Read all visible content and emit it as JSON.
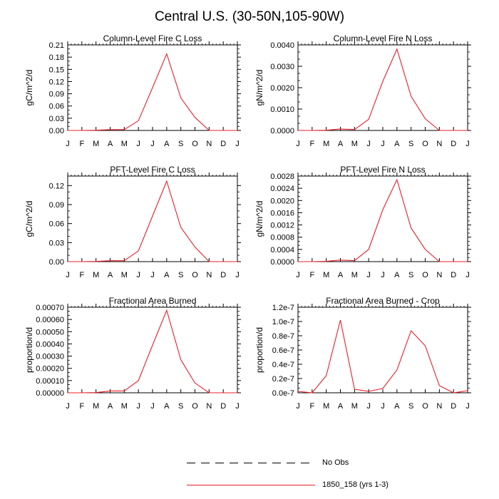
{
  "figure": {
    "title": "Central U.S. (30-50N,105-90W)"
  },
  "months": [
    "J",
    "F",
    "M",
    "A",
    "M",
    "J",
    "J",
    "A",
    "S",
    "O",
    "N",
    "D",
    "J"
  ],
  "colors": {
    "model": "#e8202a",
    "obs": "#000000"
  },
  "legend": [
    {
      "label": "No Obs",
      "style": "dashed",
      "color": "#000000"
    },
    {
      "label": "1850_158 (yrs 1-3)",
      "style": "solid",
      "color": "#e8202a"
    }
  ],
  "chart_data": [
    {
      "type": "line",
      "title": "Column-Level Fire C Loss",
      "ylabel": "gC/m^2/d",
      "ylim": [
        0,
        0.21
      ],
      "yticks": [
        "0.00",
        "0.03",
        "0.06",
        "0.09",
        "0.12",
        "0.15",
        "0.18",
        "0.21"
      ],
      "x": [
        "J",
        "F",
        "M",
        "A",
        "M",
        "J",
        "J",
        "A",
        "S",
        "O",
        "N",
        "D",
        "J"
      ],
      "series": [
        {
          "values": [
            0.0,
            0.0,
            0.0005,
            0.002,
            0.002,
            0.024,
            0.105,
            0.188,
            0.08,
            0.032,
            0.0,
            0.0,
            0.0
          ]
        }
      ]
    },
    {
      "type": "line",
      "title": "Column-Level Fire N Loss",
      "ylabel": "gN/m^2/d",
      "ylim": [
        0,
        0.004
      ],
      "yticks": [
        "0.0000",
        "0.0010",
        "0.0020",
        "0.0030",
        "0.0040"
      ],
      "x": [
        "J",
        "F",
        "M",
        "A",
        "M",
        "J",
        "J",
        "A",
        "S",
        "O",
        "N",
        "D",
        "J"
      ],
      "series": [
        {
          "values": [
            0.0,
            0.0,
            1e-05,
            7e-05,
            4e-05,
            0.00052,
            0.0023,
            0.0038,
            0.0016,
            0.00055,
            0.0,
            0.0,
            0.0
          ]
        }
      ]
    },
    {
      "type": "line",
      "title": "PFT-Level Fire C Loss",
      "ylabel": "gC/m^2/d",
      "ylim": [
        0,
        0.135
      ],
      "yticks": [
        "0.00",
        "0.03",
        "0.06",
        "0.09",
        "0.12"
      ],
      "x": [
        "J",
        "F",
        "M",
        "A",
        "M",
        "J",
        "J",
        "A",
        "S",
        "O",
        "N",
        "D",
        "J"
      ],
      "series": [
        {
          "values": [
            0.0,
            0.0,
            0.0003,
            0.0015,
            0.0015,
            0.017,
            0.072,
            0.127,
            0.054,
            0.023,
            0.0,
            0.0,
            0.0
          ]
        }
      ]
    },
    {
      "type": "line",
      "title": "PFT-Level Fire N Loss",
      "ylabel": "gN/m^2/d",
      "ylim": [
        0,
        0.0028
      ],
      "yticks": [
        "0.0000",
        "0.0004",
        "0.0008",
        "0.0012",
        "0.0016",
        "0.0020",
        "0.0024",
        "0.0028"
      ],
      "x": [
        "J",
        "F",
        "M",
        "A",
        "M",
        "J",
        "J",
        "A",
        "S",
        "O",
        "N",
        "D",
        "J"
      ],
      "series": [
        {
          "values": [
            0.0,
            0.0,
            1e-05,
            5e-05,
            3e-05,
            0.0004,
            0.0017,
            0.00268,
            0.0011,
            0.0004,
            0.0,
            0.0,
            0.0
          ]
        }
      ]
    },
    {
      "type": "line",
      "title": "Fractional Area Burned",
      "ylabel": "proportion/d",
      "ylim": [
        0,
        0.0007
      ],
      "yticks": [
        "0.00000",
        "0.00010",
        "0.00020",
        "0.00030",
        "0.00040",
        "0.00050",
        "0.00060",
        "0.00070"
      ],
      "x": [
        "J",
        "F",
        "M",
        "A",
        "M",
        "J",
        "J",
        "A",
        "S",
        "O",
        "N",
        "D",
        "J"
      ],
      "series": [
        {
          "values": [
            0.0,
            0.0,
            2e-06,
            1.5e-05,
            1.5e-05,
            0.0001,
            0.00039,
            0.000675,
            0.00027,
            8e-05,
            0.0,
            0.0,
            0.0
          ]
        }
      ]
    },
    {
      "type": "line",
      "title": "Fractional Area Burned - Crop",
      "ylabel": "proportion/d",
      "ylim": [
        0,
        1.2e-07
      ],
      "yticks": [
        "0.0e-7",
        "0.2e-7",
        "0.4e-7",
        "0.6e-7",
        "0.8e-7",
        "1.0e-7",
        "1.2e-7"
      ],
      "x": [
        "J",
        "F",
        "M",
        "A",
        "M",
        "J",
        "J",
        "A",
        "S",
        "O",
        "N",
        "D",
        "J"
      ],
      "series": [
        {
          "values": [
            2e-09,
            0.0,
            2.4e-08,
            1.02e-07,
            5e-09,
            2e-09,
            6e-09,
            3.2e-08,
            8.7e-08,
            6.6e-08,
            1e-08,
            0.0,
            3e-09
          ]
        }
      ]
    }
  ]
}
